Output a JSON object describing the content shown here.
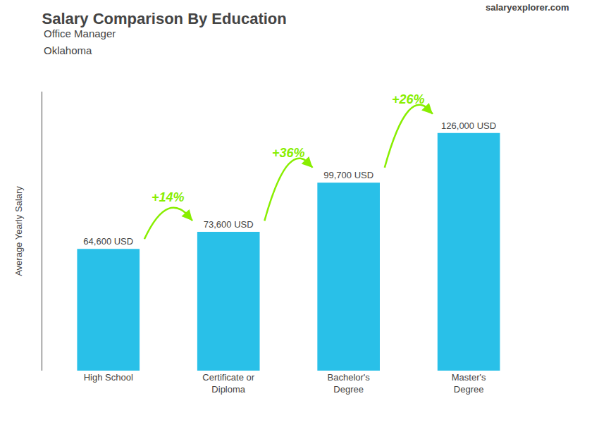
{
  "chart_data": {
    "type": "bar",
    "title": "Salary Comparison By Education",
    "subtitle": [
      "Office Manager",
      "Oklahoma"
    ],
    "source": "salaryexplorer.com",
    "categories": [
      "High School",
      "Certificate or\nDiploma",
      "Bachelor's\nDegree",
      "Master's\nDegree"
    ],
    "values": [
      64600,
      73600,
      99700,
      126000
    ],
    "value_labels": [
      "64,600 USD",
      "73,600 USD",
      "99,700 USD",
      "126,000 USD"
    ],
    "data_labels": true,
    "color": "#29C0E8",
    "ylabel": "Average Yearly Salary",
    "ylim": [
      0,
      148000
    ],
    "yticks": [],
    "tick_labels": "x",
    "grid": false,
    "annotations": [
      {
        "text": "+14%",
        "color": "#88EE00"
      },
      {
        "text": "+36%",
        "color": "#88EE00"
      },
      {
        "text": "+26%",
        "color": "#88EE00"
      }
    ]
  }
}
